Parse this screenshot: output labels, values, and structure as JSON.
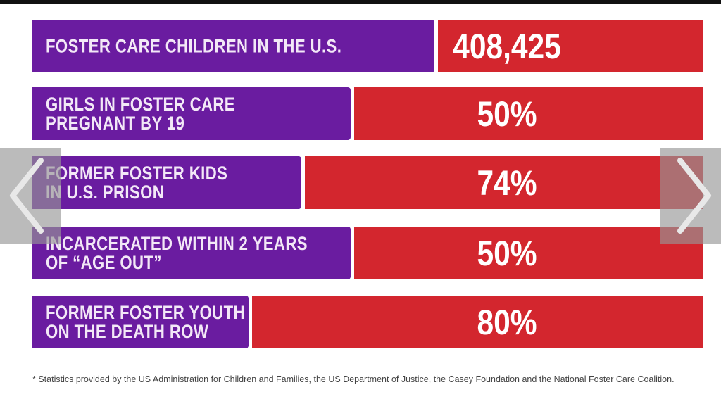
{
  "stats": [
    {
      "label": "FOSTER CARE CHILDREN IN THE U.S.",
      "value": "408,425"
    },
    {
      "label": "GIRLS IN FOSTER CARE\nPREGNANT BY 19",
      "value": "50%"
    },
    {
      "label": "FORMER FOSTER KIDS\nIN U.S. PRISON",
      "value": "74%"
    },
    {
      "label": "INCARCERATED WITHIN 2 YEARS\nOF “AGE OUT”",
      "value": "50%"
    },
    {
      "label": "FORMER FOSTER YOUTH\nON THE DEATH ROW",
      "value": "80%"
    }
  ],
  "footnote": "* Statistics provided by the US Administration for Children and Families, the US Department of Justice, the Casey Foundation and the National Foster Care Coalition.",
  "nav": {
    "prev_icon": "chevron-left-icon",
    "next_icon": "chevron-right-icon"
  },
  "colors": {
    "purple": "#6a1ca0",
    "red": "#d3262e"
  }
}
